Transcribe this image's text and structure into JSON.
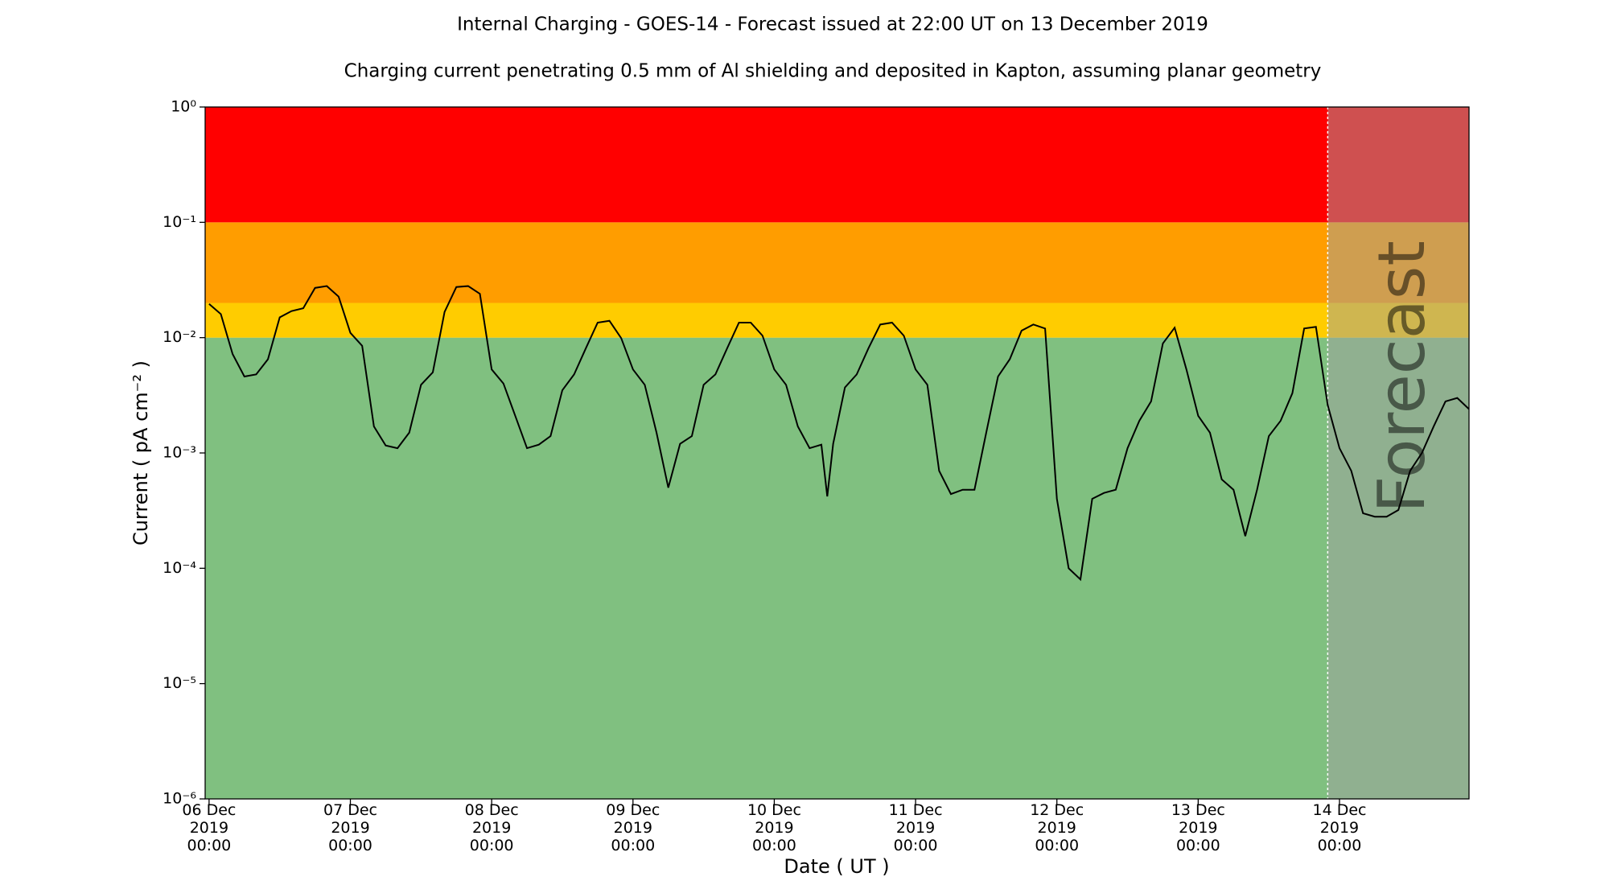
{
  "chart_data": {
    "type": "line",
    "title": "Internal Charging - GOES-14 - Forecast issued at 22:00 UT on 13 December 2019",
    "subtitle": "Charging current penetrating 0.5 mm of Al shielding and deposited in Kapton, assuming planar geometry",
    "x_label": "Date ( UT )",
    "y_label": "Current ( pA cm⁻² )",
    "y_scale": "log",
    "ylim": [
      1e-06,
      1
    ],
    "yticks": [
      {
        "value": 1e-06,
        "label": "10⁻⁶"
      },
      {
        "value": 1e-05,
        "label": "10⁻⁵"
      },
      {
        "value": 0.0001,
        "label": "10⁻⁴"
      },
      {
        "value": 0.001,
        "label": "10⁻³"
      },
      {
        "value": 0.01,
        "label": "10⁻²"
      },
      {
        "value": 0.1,
        "label": "10⁻¹"
      },
      {
        "value": 1,
        "label": "10⁰"
      }
    ],
    "xlim": [
      "2019-12-05 23:20",
      "2019-12-14 22:00"
    ],
    "xticks": [
      {
        "value": "2019-12-06 00:00",
        "label": "06 Dec\n2019\n00:00"
      },
      {
        "value": "2019-12-07 00:00",
        "label": "07 Dec\n2019\n00:00"
      },
      {
        "value": "2019-12-08 00:00",
        "label": "08 Dec\n2019\n00:00"
      },
      {
        "value": "2019-12-09 00:00",
        "label": "09 Dec\n2019\n00:00"
      },
      {
        "value": "2019-12-10 00:00",
        "label": "10 Dec\n2019\n00:00"
      },
      {
        "value": "2019-12-11 00:00",
        "label": "11 Dec\n2019\n00:00"
      },
      {
        "value": "2019-12-12 00:00",
        "label": "12 Dec\n2019\n00:00"
      },
      {
        "value": "2019-12-13 00:00",
        "label": "13 Dec\n2019\n00:00"
      },
      {
        "value": "2019-12-14 00:00",
        "label": "14 Dec\n2019\n00:00"
      }
    ],
    "bands": [
      {
        "from": 1e-06,
        "to": 0.01,
        "color": "#80c080"
      },
      {
        "from": 0.01,
        "to": 0.02,
        "color": "#ffcc00"
      },
      {
        "from": 0.02,
        "to": 0.1,
        "color": "#ff9d00"
      },
      {
        "from": 0.1,
        "to": 1,
        "color": "#ff0000"
      }
    ],
    "forecast_start": "2019-12-13 22:00",
    "forecast_label": "Forecast",
    "forecast_color": "#a0a0a0",
    "x": [
      "2019-12-06 00:00",
      "2019-12-06 02:00",
      "2019-12-06 04:00",
      "2019-12-06 06:00",
      "2019-12-06 08:00",
      "2019-12-06 10:00",
      "2019-12-06 12:00",
      "2019-12-06 14:00",
      "2019-12-06 16:00",
      "2019-12-06 18:00",
      "2019-12-06 20:00",
      "2019-12-06 22:00",
      "2019-12-07 00:00",
      "2019-12-07 02:00",
      "2019-12-07 04:00",
      "2019-12-07 06:00",
      "2019-12-07 08:00",
      "2019-12-07 10:00",
      "2019-12-07 12:00",
      "2019-12-07 14:00",
      "2019-12-07 16:00",
      "2019-12-07 18:00",
      "2019-12-07 20:00",
      "2019-12-07 22:00",
      "2019-12-08 00:00",
      "2019-12-08 02:00",
      "2019-12-08 04:00",
      "2019-12-08 06:00",
      "2019-12-08 08:00",
      "2019-12-08 10:00",
      "2019-12-08 12:00",
      "2019-12-08 14:00",
      "2019-12-08 16:00",
      "2019-12-08 18:00",
      "2019-12-08 20:00",
      "2019-12-08 22:00",
      "2019-12-09 00:00",
      "2019-12-09 02:00",
      "2019-12-09 04:00",
      "2019-12-09 06:00",
      "2019-12-09 08:00",
      "2019-12-09 10:00",
      "2019-12-09 12:00",
      "2019-12-09 14:00",
      "2019-12-09 16:00",
      "2019-12-09 18:00",
      "2019-12-09 20:00",
      "2019-12-09 22:00",
      "2019-12-10 00:00",
      "2019-12-10 02:00",
      "2019-12-10 04:00",
      "2019-12-10 06:00",
      "2019-12-10 08:00",
      "2019-12-10 09:00",
      "2019-12-10 10:00",
      "2019-12-10 12:00",
      "2019-12-10 14:00",
      "2019-12-10 16:00",
      "2019-12-10 18:00",
      "2019-12-10 20:00",
      "2019-12-10 22:00",
      "2019-12-11 00:00",
      "2019-12-11 02:00",
      "2019-12-11 04:00",
      "2019-12-11 06:00",
      "2019-12-11 08:00",
      "2019-12-11 10:00",
      "2019-12-11 12:00",
      "2019-12-11 14:00",
      "2019-12-11 16:00",
      "2019-12-11 18:00",
      "2019-12-11 20:00",
      "2019-12-11 22:00",
      "2019-12-12 00:00",
      "2019-12-12 02:00",
      "2019-12-12 04:00",
      "2019-12-12 06:00",
      "2019-12-12 08:00",
      "2019-12-12 10:00",
      "2019-12-12 12:00",
      "2019-12-12 14:00",
      "2019-12-12 16:00",
      "2019-12-12 18:00",
      "2019-12-12 20:00",
      "2019-12-12 22:00",
      "2019-12-13 00:00",
      "2019-12-13 02:00",
      "2019-12-13 04:00",
      "2019-12-13 06:00",
      "2019-12-13 08:00",
      "2019-12-13 10:00",
      "2019-12-13 12:00",
      "2019-12-13 14:00",
      "2019-12-13 16:00",
      "2019-12-13 18:00",
      "2019-12-13 20:00",
      "2019-12-13 22:00",
      "2019-12-14 00:00",
      "2019-12-14 02:00",
      "2019-12-14 04:00",
      "2019-12-14 06:00",
      "2019-12-14 08:00",
      "2019-12-14 10:00",
      "2019-12-14 12:00",
      "2019-12-14 14:00",
      "2019-12-14 16:00",
      "2019-12-14 18:00",
      "2019-12-14 20:00",
      "2019-12-14 22:00"
    ],
    "series": [
      {
        "name": "Current",
        "color": "#000000",
        "values": [
          0.0196,
          0.016,
          0.0072,
          0.0046,
          0.0048,
          0.0065,
          0.015,
          0.017,
          0.018,
          0.027,
          0.028,
          0.0227,
          0.011,
          0.0085,
          0.0017,
          0.00116,
          0.0011,
          0.0015,
          0.0039,
          0.005,
          0.0167,
          0.0275,
          0.028,
          0.024,
          0.0053,
          0.004,
          0.0021,
          0.0011,
          0.00118,
          0.0014,
          0.0035,
          0.0048,
          0.0081,
          0.0135,
          0.014,
          0.0099,
          0.0053,
          0.0039,
          0.0015,
          0.0005,
          0.0012,
          0.0014,
          0.0039,
          0.0048,
          0.0081,
          0.0135,
          0.0135,
          0.0104,
          0.0053,
          0.0039,
          0.0017,
          0.0011,
          0.00118,
          0.00042,
          0.0012,
          0.0037,
          0.0048,
          0.0081,
          0.013,
          0.0135,
          0.0104,
          0.0053,
          0.0039,
          0.0007,
          0.00044,
          0.00048,
          0.00048,
          0.0015,
          0.0046,
          0.0065,
          0.0115,
          0.013,
          0.012,
          0.0004,
          0.0001,
          8e-05,
          0.0004,
          0.00045,
          0.00048,
          0.0011,
          0.0019,
          0.0028,
          0.0089,
          0.0122,
          0.0053,
          0.0021,
          0.0015,
          0.00059,
          0.00048,
          0.00019,
          0.00048,
          0.0014,
          0.0019,
          0.0033,
          0.012,
          0.0124,
          0.0026,
          0.0011,
          0.0007,
          0.0003,
          0.00028,
          0.00028,
          0.00032,
          0.0007,
          0.001,
          0.0017,
          0.0028,
          0.003,
          0.0024
        ]
      }
    ]
  }
}
